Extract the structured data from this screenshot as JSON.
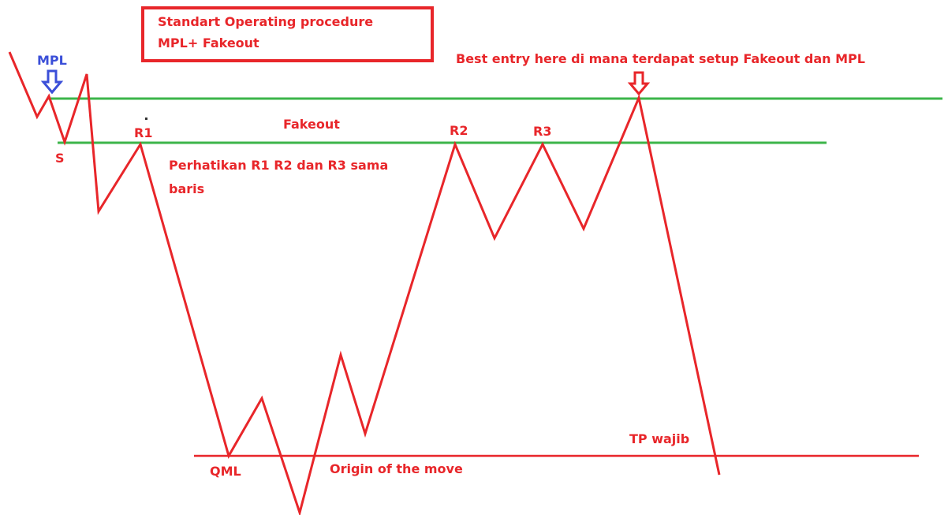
{
  "title": {
    "lines": [
      "Standart Operating procedure",
      "MPL+ Fakeout"
    ]
  },
  "labels": {
    "mpl": "MPL",
    "s": "S",
    "r1": "R1",
    "fakeout": "Fakeout",
    "r2": "R2",
    "r3": "R3",
    "note": [
      "Perhatikan R1 R2 dan R3 sama",
      "baris"
    ],
    "best_entry": "Best entry here di mana terdapat setup Fakeout dan MPL",
    "tp": "TP wajib",
    "qml": "QML",
    "origin": "Origin of the move"
  }
}
